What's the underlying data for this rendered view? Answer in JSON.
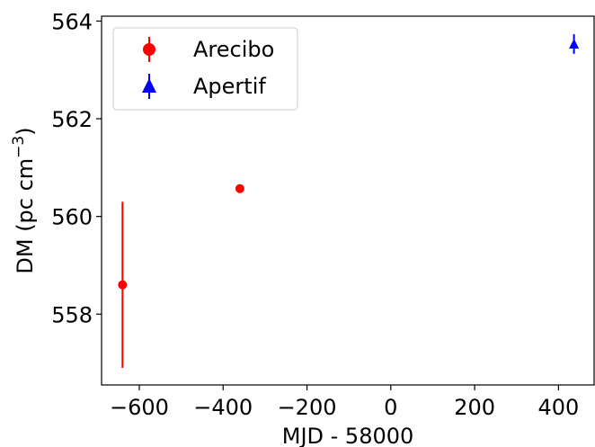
{
  "chart_data": {
    "type": "scatter",
    "xlabel": "MJD - 58000",
    "ylabel_main": "DM (pc cm",
    "ylabel_sup": "−3",
    "ylabel_close": ")",
    "xlim": [
      -690,
      485
    ],
    "ylim": [
      556.55,
      564.1
    ],
    "xticks": [
      -600,
      -400,
      -200,
      0,
      200,
      400
    ],
    "xtick_labels": [
      "−600",
      "−400",
      "−200",
      "0",
      "200",
      "400"
    ],
    "yticks": [
      558,
      560,
      562,
      564
    ],
    "ytick_labels": [
      "558",
      "560",
      "562",
      "564"
    ],
    "grid": false,
    "legend_position": "top-left",
    "series": [
      {
        "name": "Arecibo",
        "color": "#ff0000",
        "marker": "circle",
        "points": [
          {
            "x": -640,
            "y": 558.6,
            "yerr": 1.7
          },
          {
            "x": -360,
            "y": 560.57,
            "yerr": 0
          }
        ]
      },
      {
        "name": "Apertif",
        "color": "#0000ff",
        "marker": "triangle",
        "points": [
          {
            "x": 437,
            "y": 563.53,
            "yerr": 0.2
          }
        ]
      }
    ]
  }
}
